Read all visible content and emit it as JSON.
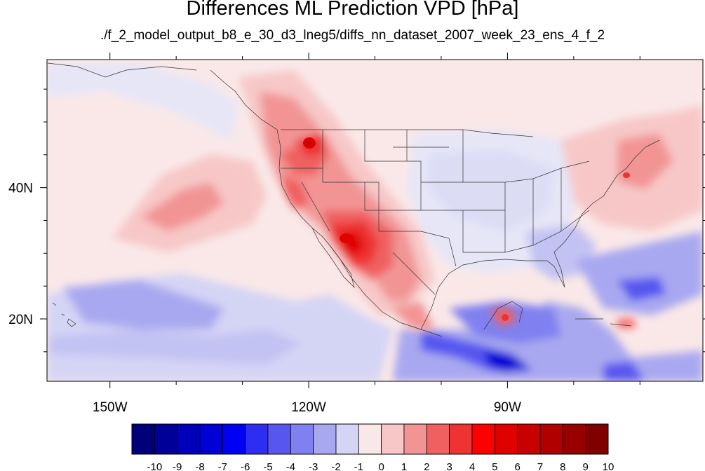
{
  "title": "Differences ML Prediction VPD [hPa]",
  "subtitle": "./f_2_model_output_b8_e_30_d3_lneg5/diffs_nn_dataset_2007_week_23_ens_4_f_2",
  "map": {
    "lon_labels": [
      {
        "value": -150,
        "text": "150W"
      },
      {
        "value": -120,
        "text": "120W"
      },
      {
        "value": -90,
        "text": "90W"
      }
    ],
    "lat_labels": [
      {
        "value": 40,
        "text": "40N"
      },
      {
        "value": 20,
        "text": "20N"
      }
    ],
    "lon_range": [
      -159.5,
      -60.5
    ],
    "lat_range": [
      10.5,
      59.5
    ]
  },
  "colorbar": {
    "labels": [
      "-10",
      "-9",
      "-8",
      "-7",
      "-6",
      "-5",
      "-4",
      "-3",
      "-2",
      "-1",
      "0",
      "1",
      "2",
      "3",
      "4",
      "5",
      "6",
      "7",
      "8",
      "9",
      "10"
    ],
    "colors": [
      "#00007a",
      "#000099",
      "#0000b8",
      "#0000d6",
      "#0000f5",
      "#2e2ef2",
      "#5757f0",
      "#8080f0",
      "#a8a8f0",
      "#d4d4f5",
      "#fae8e8",
      "#f7c7c7",
      "#f29494",
      "#f06060",
      "#ee3333",
      "#ff0000",
      "#e00000",
      "#c80000",
      "#b00000",
      "#980000",
      "#800000"
    ]
  }
}
